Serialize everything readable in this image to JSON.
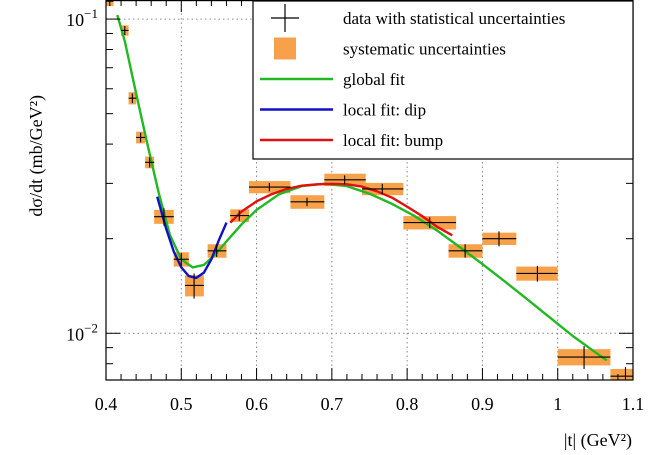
{
  "chart_data": {
    "type": "scatter",
    "xlabel": "|t|   (GeV²)",
    "ylabel": "dσ/dt   (mb/GeV²)",
    "xlim": [
      0.4,
      1.1
    ],
    "ylim": [
      0.0071,
      0.115
    ],
    "yscale": "log",
    "grid": true,
    "legend_position": "top-right",
    "x_ticks": [
      "0.4",
      "0.5",
      "0.6",
      "0.7",
      "0.8",
      "0.9",
      "1",
      "1.1"
    ],
    "y_ticks": [
      {
        "value": 0.1,
        "base": "10",
        "exp": "−1"
      },
      {
        "value": 0.01,
        "base": "10",
        "exp": "−2"
      }
    ],
    "colors": {
      "data": "#000000",
      "systematic": "#f7a14a",
      "global_fit": "#22b822",
      "dip_fit": "#1010c8",
      "bump_fit": "#e01010",
      "grid": "#8a8a8a"
    },
    "legend": [
      {
        "label": "data with statistical uncertainties",
        "kind": "marker"
      },
      {
        "label": "systematic uncertainties",
        "kind": "box"
      },
      {
        "label": "global fit",
        "kind": "line",
        "color": "#22b822"
      },
      {
        "label": "local fit: dip",
        "kind": "line",
        "color": "#1010c8"
      },
      {
        "label": "local fit: bump",
        "kind": "line",
        "color": "#e01010"
      }
    ],
    "points": [
      {
        "x": 0.405,
        "xlo": 0.4,
        "xhi": 0.41,
        "y": 0.114,
        "stat": 0.004,
        "sys": 0.004
      },
      {
        "x": 0.425,
        "xlo": 0.42,
        "xhi": 0.43,
        "y": 0.092,
        "stat": 0.003,
        "sys": 0.0035
      },
      {
        "x": 0.435,
        "xlo": 0.43,
        "xhi": 0.44,
        "y": 0.056,
        "stat": 0.002,
        "sys": 0.0025
      },
      {
        "x": 0.446,
        "xlo": 0.44,
        "xhi": 0.452,
        "y": 0.042,
        "stat": 0.0015,
        "sys": 0.0018
      },
      {
        "x": 0.458,
        "xlo": 0.452,
        "xhi": 0.464,
        "y": 0.035,
        "stat": 0.0013,
        "sys": 0.0015
      },
      {
        "x": 0.477,
        "xlo": 0.464,
        "xhi": 0.49,
        "y": 0.0235,
        "stat": 0.0015,
        "sys": 0.0012
      },
      {
        "x": 0.5,
        "xlo": 0.49,
        "xhi": 0.51,
        "y": 0.0172,
        "stat": 0.0008,
        "sys": 0.0009
      },
      {
        "x": 0.517,
        "xlo": 0.505,
        "xhi": 0.53,
        "y": 0.0142,
        "stat": 0.0013,
        "sys": 0.0011
      },
      {
        "x": 0.547,
        "xlo": 0.535,
        "xhi": 0.56,
        "y": 0.0183,
        "stat": 0.0008,
        "sys": 0.0009
      },
      {
        "x": 0.577,
        "xlo": 0.565,
        "xhi": 0.59,
        "y": 0.0237,
        "stat": 0.0009,
        "sys": 0.0011
      },
      {
        "x": 0.617,
        "xlo": 0.59,
        "xhi": 0.645,
        "y": 0.0292,
        "stat": 0.0009,
        "sys": 0.0013
      },
      {
        "x": 0.667,
        "xlo": 0.645,
        "xhi": 0.69,
        "y": 0.0262,
        "stat": 0.0008,
        "sys": 0.0013
      },
      {
        "x": 0.717,
        "xlo": 0.69,
        "xhi": 0.745,
        "y": 0.0308,
        "stat": 0.001,
        "sys": 0.0014
      },
      {
        "x": 0.767,
        "xlo": 0.74,
        "xhi": 0.795,
        "y": 0.0288,
        "stat": 0.0011,
        "sys": 0.0013
      },
      {
        "x": 0.83,
        "xlo": 0.795,
        "xhi": 0.865,
        "y": 0.0225,
        "stat": 0.0009,
        "sys": 0.0011
      },
      {
        "x": 0.877,
        "xlo": 0.855,
        "xhi": 0.9,
        "y": 0.0183,
        "stat": 0.0009,
        "sys": 0.0009
      },
      {
        "x": 0.922,
        "xlo": 0.9,
        "xhi": 0.945,
        "y": 0.02,
        "stat": 0.0011,
        "sys": 0.0009
      },
      {
        "x": 0.973,
        "xlo": 0.945,
        "xhi": 1.0,
        "y": 0.0155,
        "stat": 0.0009,
        "sys": 0.0008
      },
      {
        "x": 1.035,
        "xlo": 1.0,
        "xhi": 1.07,
        "y": 0.0084,
        "stat": 0.0007,
        "sys": 0.0005
      },
      {
        "x": 1.09,
        "xlo": 1.07,
        "xhi": 1.11,
        "y": 0.0073,
        "stat": 0.0005,
        "sys": 0.0004
      }
    ],
    "fits": [
      {
        "name": "global fit",
        "color": "#22b822",
        "x": [
          0.415,
          0.425,
          0.44,
          0.455,
          0.47,
          0.485,
          0.5,
          0.515,
          0.53,
          0.545,
          0.56,
          0.58,
          0.6,
          0.63,
          0.66,
          0.69,
          0.72,
          0.75,
          0.78,
          0.81,
          0.84,
          0.87,
          0.9,
          0.93,
          0.96,
          0.99,
          1.02,
          1.05,
          1.065
        ],
        "y": [
          0.103,
          0.085,
          0.058,
          0.04,
          0.028,
          0.0205,
          0.0172,
          0.0162,
          0.0165,
          0.0178,
          0.0196,
          0.0222,
          0.0247,
          0.0277,
          0.0294,
          0.0299,
          0.0294,
          0.0278,
          0.0258,
          0.0236,
          0.0212,
          0.0188,
          0.0166,
          0.0146,
          0.0128,
          0.0112,
          0.0098,
          0.0087,
          0.0082
        ]
      },
      {
        "name": "local fit: dip",
        "color": "#1010c8",
        "x": [
          0.468,
          0.48,
          0.49,
          0.5,
          0.51,
          0.52,
          0.53,
          0.54,
          0.55,
          0.56
        ],
        "y": [
          0.0272,
          0.0215,
          0.0182,
          0.0162,
          0.0152,
          0.015,
          0.0156,
          0.0172,
          0.0198,
          0.0225
        ]
      },
      {
        "name": "local fit: bump",
        "color": "#e01010",
        "x": [
          0.565,
          0.58,
          0.6,
          0.62,
          0.64,
          0.66,
          0.68,
          0.7,
          0.72,
          0.74,
          0.76,
          0.78,
          0.8,
          0.82,
          0.84,
          0.86
        ],
        "y": [
          0.0225,
          0.0244,
          0.0263,
          0.0277,
          0.0288,
          0.0295,
          0.0298,
          0.0299,
          0.0298,
          0.0293,
          0.0283,
          0.027,
          0.0253,
          0.0236,
          0.0218,
          0.0205
        ]
      }
    ]
  }
}
